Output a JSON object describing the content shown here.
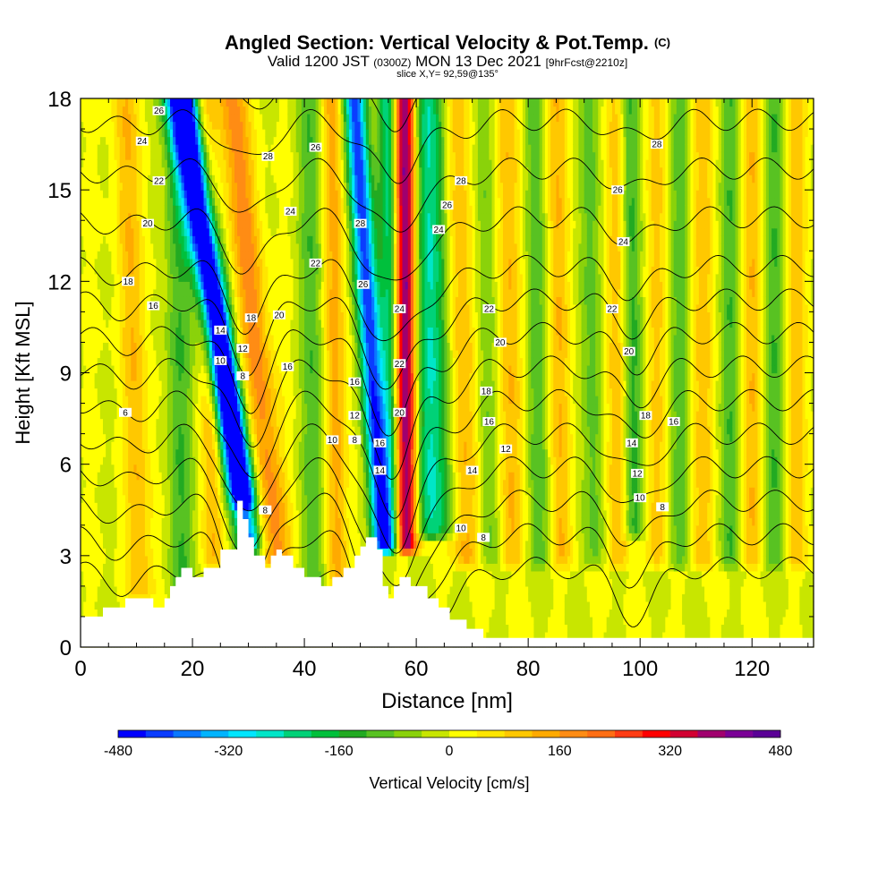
{
  "title": {
    "main": "Angled Section: Vertical Velocity & Pot.Temp.",
    "units": "(C)",
    "valid_prefix": "Valid 1200 JST",
    "valid_utc": "(0300Z)",
    "valid_date": "MON 13 Dec 2021",
    "forecast": "[9hrFcst@2210z]",
    "slice": "slice X,Y= 92,59@135°"
  },
  "colors": {
    "terrain": "#ffffff",
    "contour_line": "#000000",
    "scale": [
      "#0000ff",
      "#0a3cff",
      "#0a78ff",
      "#00b4ff",
      "#00e6ff",
      "#00e6c8",
      "#00d278",
      "#00c03c",
      "#22aa22",
      "#58c222",
      "#8ad20a",
      "#c8e600",
      "#ffff00",
      "#ffe600",
      "#ffc800",
      "#ffaa00",
      "#ff8c14",
      "#ff6e14",
      "#ff3c14",
      "#ff0000",
      "#d20032",
      "#a0006e",
      "#7a0096",
      "#5a0096"
    ]
  },
  "chart_data": {
    "type": "heatmap",
    "title": "Angled Section: Vertical Velocity & Pot.Temp. (C)",
    "xlabel": "Distance [nm]",
    "ylabel": "Height [Kft MSL]",
    "xlim": [
      0,
      131
    ],
    "ylim": [
      0,
      18
    ],
    "x_ticks": [
      0,
      20,
      40,
      60,
      80,
      100,
      120
    ],
    "y_ticks": [
      0,
      3,
      6,
      9,
      12,
      15,
      18
    ],
    "colorbar": {
      "label": "Vertical Velocity [cm/s]",
      "min": -480,
      "step": 40,
      "tick_labels": [
        -480,
        -320,
        -160,
        0,
        160,
        320,
        480
      ]
    },
    "terrain_profile": {
      "x": [
        0,
        4,
        4,
        8,
        8,
        13,
        13,
        15,
        15,
        16,
        16,
        17,
        17,
        18,
        18,
        20,
        20,
        22,
        22,
        25,
        25,
        28,
        28,
        29,
        29,
        30,
        30,
        31,
        31,
        33,
        33,
        34,
        34,
        35,
        35,
        36,
        36,
        38,
        38,
        40,
        40,
        43,
        43,
        45,
        45,
        47,
        47,
        49,
        49,
        50,
        50,
        51,
        51,
        53,
        53,
        54,
        54,
        55,
        55,
        56,
        56,
        57,
        57,
        59,
        59,
        62,
        62,
        64,
        64,
        66,
        66,
        69,
        69,
        72,
        72,
        131
      ],
      "heights": [
        1,
        1,
        1.3,
        1.3,
        1.6,
        1.6,
        1.3,
        1.3,
        1.6,
        1.6,
        2,
        2,
        2.3,
        2.3,
        2.6,
        2.6,
        2.3,
        2.3,
        2.6,
        2.6,
        3.2,
        3.2,
        4.8,
        4.8,
        4.2,
        4.2,
        3.6,
        3.6,
        3,
        3,
        2.6,
        2.6,
        3,
        3,
        3.2,
        3.2,
        3,
        3,
        2.6,
        2.6,
        2.3,
        2.3,
        2,
        2,
        2.3,
        2.3,
        2.6,
        2.6,
        3,
        3,
        3.3,
        3.3,
        3.6,
        3.6,
        3.2,
        3.2,
        2,
        2,
        1.6,
        1.6,
        2,
        2,
        2.3,
        2.3,
        2,
        2,
        1.6,
        1.6,
        1.3,
        1.3,
        0.9,
        0.9,
        0.6,
        0.6,
        0.3,
        0.3
      ]
    },
    "velocity_features": [
      {
        "x_base": 30,
        "x_top": 19,
        "z_base": 3.5,
        "z_top": 18,
        "width": 2.2,
        "peak": -400
      },
      {
        "x_base": 29,
        "x_top": 17,
        "z_base": 5,
        "z_top": 18,
        "width": 2.5,
        "peak": -300
      },
      {
        "x_base": 35,
        "x_top": 27,
        "z_base": 3,
        "z_top": 18,
        "width": 2.8,
        "peak": 180
      },
      {
        "x_base": 54,
        "x_top": 49,
        "z_base": 3.5,
        "z_top": 18,
        "width": 2.0,
        "peak": -440
      },
      {
        "x_base": 56,
        "x_top": 55,
        "z_base": 3.5,
        "z_top": 18,
        "width": 1.8,
        "peak": -260
      },
      {
        "x_base": 58,
        "x_top": 58,
        "z_base": 3.5,
        "z_top": 18,
        "width": 2.2,
        "peak": 470
      },
      {
        "x_base": 63,
        "x_top": 62,
        "z_base": 4,
        "z_top": 18,
        "width": 3.5,
        "peak": -250
      },
      {
        "x_base": 11,
        "x_top": 8,
        "z_base": 2,
        "z_top": 18,
        "width": 2.5,
        "peak": 110
      },
      {
        "x_base": 18,
        "x_top": 17,
        "z_base": 2,
        "z_top": 18,
        "width": 2.3,
        "peak": -120
      },
      {
        "x_base": 24,
        "x_top": 22,
        "z_base": 3,
        "z_top": 18,
        "width": 2.0,
        "peak": 110
      },
      {
        "x_base": 42,
        "x_top": 41,
        "z_base": 2,
        "z_top": 18,
        "width": 2.2,
        "peak": -110
      },
      {
        "x_base": 46,
        "x_top": 45,
        "z_base": 2,
        "z_top": 18,
        "width": 2.0,
        "peak": 140
      },
      {
        "x_base": 69,
        "x_top": 67,
        "z_base": 3,
        "z_top": 18,
        "width": 2.5,
        "peak": 140
      },
      {
        "x_base": 73,
        "x_top": 72,
        "z_base": 3,
        "z_top": 18,
        "width": 2.0,
        "peak": -90
      },
      {
        "x_base": 77,
        "x_top": 76,
        "z_base": 3,
        "z_top": 18,
        "width": 2.2,
        "peak": 120
      },
      {
        "x_base": 82,
        "x_top": 81,
        "z_base": 3,
        "z_top": 18,
        "width": 2.0,
        "peak": -100
      },
      {
        "x_base": 86,
        "x_top": 85,
        "z_base": 3,
        "z_top": 18,
        "width": 2.0,
        "peak": 110
      },
      {
        "x_base": 92,
        "x_top": 91,
        "z_base": 3,
        "z_top": 18,
        "width": 2.0,
        "peak": -100
      },
      {
        "x_base": 96,
        "x_top": 96,
        "z_base": 3,
        "z_top": 18,
        "width": 2.0,
        "peak": 140
      },
      {
        "x_base": 99,
        "x_top": 98,
        "z_base": 4,
        "z_top": 18,
        "width": 2.0,
        "peak": -160
      },
      {
        "x_base": 103,
        "x_top": 103,
        "z_base": 3,
        "z_top": 18,
        "width": 2.0,
        "peak": 110
      },
      {
        "x_base": 107,
        "x_top": 107,
        "z_base": 3,
        "z_top": 18,
        "width": 2.0,
        "peak": -120
      },
      {
        "x_base": 111,
        "x_top": 111,
        "z_base": 3,
        "z_top": 18,
        "width": 2.0,
        "peak": 120
      },
      {
        "x_base": 116,
        "x_top": 116,
        "z_base": 3,
        "z_top": 18,
        "width": 2.0,
        "peak": -110
      },
      {
        "x_base": 120,
        "x_top": 120,
        "z_base": 3,
        "z_top": 18,
        "width": 2.0,
        "peak": 110
      },
      {
        "x_base": 124,
        "x_top": 124,
        "z_base": 3,
        "z_top": 18,
        "width": 2.0,
        "peak": -110
      },
      {
        "x_base": 128,
        "x_top": 128,
        "z_base": 3,
        "z_top": 18,
        "width": 2.0,
        "peak": 100
      }
    ],
    "theta_contours": {
      "levels": [
        2,
        4,
        6,
        8,
        10,
        12,
        14,
        16,
        18,
        20,
        22,
        24,
        26,
        28
      ],
      "labels": [
        {
          "x": 14,
          "z": 17.6,
          "text": "26"
        },
        {
          "x": 11,
          "z": 16.6,
          "text": "24"
        },
        {
          "x": 14,
          "z": 15.3,
          "text": "22"
        },
        {
          "x": 12,
          "z": 13.9,
          "text": "20"
        },
        {
          "x": 8.5,
          "z": 12.0,
          "text": "18"
        },
        {
          "x": 13,
          "z": 11.2,
          "text": "16"
        },
        {
          "x": 25,
          "z": 10.4,
          "text": "14"
        },
        {
          "x": 29,
          "z": 9.8,
          "text": "12"
        },
        {
          "x": 25,
          "z": 9.4,
          "text": "10"
        },
        {
          "x": 29,
          "z": 8.9,
          "text": "8"
        },
        {
          "x": 8,
          "z": 7.7,
          "text": "6"
        },
        {
          "x": 30.5,
          "z": 10.8,
          "text": "18"
        },
        {
          "x": 35.5,
          "z": 10.9,
          "text": "20"
        },
        {
          "x": 37,
          "z": 9.2,
          "text": "16"
        },
        {
          "x": 33.5,
          "z": 16.1,
          "text": "28"
        },
        {
          "x": 37.5,
          "z": 14.3,
          "text": "24"
        },
        {
          "x": 42,
          "z": 16.4,
          "text": "26"
        },
        {
          "x": 42,
          "z": 12.6,
          "text": "22"
        },
        {
          "x": 33,
          "z": 4.5,
          "text": "8"
        },
        {
          "x": 50,
          "z": 13.9,
          "text": "28"
        },
        {
          "x": 50.5,
          "z": 11.9,
          "text": "26"
        },
        {
          "x": 49,
          "z": 8.7,
          "text": "16"
        },
        {
          "x": 49,
          "z": 7.6,
          "text": "12"
        },
        {
          "x": 45,
          "z": 6.8,
          "text": "10"
        },
        {
          "x": 49,
          "z": 6.8,
          "text": "8"
        },
        {
          "x": 53.5,
          "z": 6.7,
          "text": "16"
        },
        {
          "x": 53.5,
          "z": 5.8,
          "text": "14"
        },
        {
          "x": 57,
          "z": 11.1,
          "text": "24"
        },
        {
          "x": 57,
          "z": 9.3,
          "text": "22"
        },
        {
          "x": 57,
          "z": 7.7,
          "text": "20"
        },
        {
          "x": 68,
          "z": 15.3,
          "text": "28"
        },
        {
          "x": 65.5,
          "z": 14.5,
          "text": "26"
        },
        {
          "x": 64,
          "z": 13.7,
          "text": "24"
        },
        {
          "x": 73,
          "z": 11.1,
          "text": "22"
        },
        {
          "x": 75,
          "z": 10.0,
          "text": "20"
        },
        {
          "x": 72.5,
          "z": 8.4,
          "text": "18"
        },
        {
          "x": 73,
          "z": 7.4,
          "text": "16"
        },
        {
          "x": 70,
          "z": 5.8,
          "text": "14"
        },
        {
          "x": 76,
          "z": 6.5,
          "text": "12"
        },
        {
          "x": 68,
          "z": 3.9,
          "text": "10"
        },
        {
          "x": 72,
          "z": 3.6,
          "text": "8"
        },
        {
          "x": 103,
          "z": 16.5,
          "text": "28"
        },
        {
          "x": 96,
          "z": 15.0,
          "text": "26"
        },
        {
          "x": 97,
          "z": 13.3,
          "text": "24"
        },
        {
          "x": 95,
          "z": 11.1,
          "text": "22"
        },
        {
          "x": 98,
          "z": 9.7,
          "text": "20"
        },
        {
          "x": 101,
          "z": 7.6,
          "text": "18"
        },
        {
          "x": 106,
          "z": 7.4,
          "text": "16"
        },
        {
          "x": 98.5,
          "z": 6.7,
          "text": "14"
        },
        {
          "x": 99.5,
          "z": 5.7,
          "text": "12"
        },
        {
          "x": 100,
          "z": 4.9,
          "text": "10"
        },
        {
          "x": 104,
          "z": 4.6,
          "text": "8"
        }
      ]
    }
  }
}
